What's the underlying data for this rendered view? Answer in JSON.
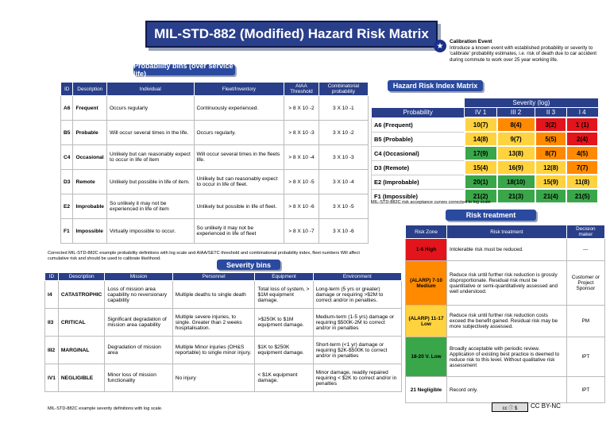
{
  "title": "MIL-STD-882 (Modified) Hazard Risk Matrix",
  "calibration": {
    "heading": "Calibration Event",
    "text": "Introduce a known event with established probability or severity to 'calibrate' probability estimates, i.e. risk of death due to car accident during commute to work over 25 year working life."
  },
  "prob_bins": {
    "heading": "Probability bins (over service life)",
    "columns": [
      "ID",
      "Description",
      "Individual",
      "Fleet/Inventory",
      "AIAA Threshold",
      "Combinatorial probability"
    ],
    "rows": [
      [
        "A6",
        "Frequent",
        "Occurs regularly",
        "Continuously experienced.",
        "> 8 X 10 -2",
        "3 X 10 -1"
      ],
      [
        "B5",
        "Probable",
        "Will occur several times in the life.",
        "Occurs regularly.",
        "> 8 X 10 -3",
        "3 X 10 -2"
      ],
      [
        "C4",
        "Occasional",
        "Unlikely but can reasonably expect to occur in life of item",
        "Will occur several times in the fleets life.",
        "> 8 X 10 -4",
        "3 X 10 -3"
      ],
      [
        "D3",
        "Remote",
        "Unlikely but possible in life of item.",
        "Unlikely but can reasonably expect to occur in life of fleet.",
        "> 8 X 10 -5",
        "3 X 10 -4"
      ],
      [
        "E2",
        "Improbable",
        "So unlikely it may not be experienced in life of item",
        "Unlikely but possible in life of fleet.",
        "> 8 X 10 -6",
        "3 X 10 -5"
      ],
      [
        "F1",
        "Impossible",
        "Virtually impossible to occur.",
        "So unlikely it may not be experienced in life of fleet",
        "> 8 X 10 -7",
        "3 X 10 -6"
      ]
    ],
    "footnote": "Corrected MIL-STD-882C example probability definitions with log scale and AIAA/SETC threshold and combinational probability index, fleet numbers Will affect cumulative risk and should be used to calibrate likelihood."
  },
  "hri": {
    "heading": "Hazard Risk Index Matrix",
    "severity_label": "Severity (log)",
    "probability_label": "Probability",
    "cols": [
      "IV 1",
      "III 2",
      "II 3",
      "I 4"
    ],
    "rows": [
      {
        "label": "A6 (Frequent)",
        "cells": [
          [
            "10(7)",
            "y"
          ],
          [
            "8(4)",
            "o"
          ],
          [
            "3(2)",
            "r"
          ],
          [
            "1 (1)",
            "r"
          ]
        ]
      },
      {
        "label": "B5 (Probable)",
        "cells": [
          [
            "14(8)",
            "y"
          ],
          [
            "9(7)",
            "y"
          ],
          [
            "5(5)",
            "o"
          ],
          [
            "2(4)",
            "r"
          ]
        ]
      },
      {
        "label": "C4 (Occasional)",
        "cells": [
          [
            "17(9)",
            "g"
          ],
          [
            "13(8)",
            "y"
          ],
          [
            "8(7)",
            "o"
          ],
          [
            "4(5)",
            "o"
          ]
        ]
      },
      {
        "label": "D3 (Remote)",
        "cells": [
          [
            "15(4)",
            "y"
          ],
          [
            "16(9)",
            "y"
          ],
          [
            "12(8)",
            "y"
          ],
          [
            "7(7)",
            "o"
          ]
        ]
      },
      {
        "label": "E2 (Improbable)",
        "cells": [
          [
            "20(1)",
            "g"
          ],
          [
            "18(10)",
            "g"
          ],
          [
            "15(9)",
            "y"
          ],
          [
            "11(8)",
            "y"
          ]
        ]
      },
      {
        "label": "F1 (Impossible)",
        "cells": [
          [
            "21(2)",
            "g"
          ],
          [
            "21(3)",
            "g"
          ],
          [
            "21(4)",
            "g"
          ],
          [
            "21(5)",
            "g"
          ]
        ]
      }
    ],
    "footnote": "MIL-STD-882C risk acceptance curves corrected to log scale"
  },
  "risk": {
    "heading": "Risk treatment",
    "columns": [
      "Risk Zone",
      "Risk treatment",
      "Decision maker"
    ],
    "rows": [
      {
        "zone": "1-6 High",
        "treat": "Intolerable risk must be reduced.",
        "dm": "---",
        "c": "r"
      },
      {
        "zone": "(ALARP) 7-10 Medium",
        "treat": "Reduce risk until further risk reduction is grossly disproportionate. Residual risk must be quantitative or semi-quantitatively assessed and well understood.",
        "dm": "Customer or Project Sponsor",
        "c": "o"
      },
      {
        "zone": "(ALARP) 11-17 Low",
        "treat": "Reduce risk until further risk reduction costs exceed the benefit gained. Residual risk may be more subjectively assessed.",
        "dm": "PM",
        "c": "y"
      },
      {
        "zone": "18-20 V. Low",
        "treat": "Broadly acceptable with periodic review. Application of existing best practice is deemed to reduce risk to this level. Without qualitative risk assessment",
        "dm": "IPT",
        "c": "g"
      },
      {
        "zone": "21 Negligible",
        "treat": "Record only.",
        "dm": "IPT",
        "c": "w"
      }
    ]
  },
  "sev": {
    "heading": "Severity bins",
    "columns": [
      "ID",
      "Description",
      "Mission",
      "Personnel",
      "Equipment",
      "Environment"
    ],
    "rows": [
      [
        "I4",
        "CATASTROPHIC",
        "Loss of mission area capability no reversionary capability",
        "Multiple deaths to single death",
        "Total loss of system, > $1M equipment damage.",
        "Long-term (5 yrs or greater) damage or requiring >$2M to correct and/or in penalties."
      ],
      [
        "II3",
        "CRITICAL",
        "Significant degradation of mission area capability",
        "Multiple severe injuries, to single. Greater than 2 weeks hospitalisation.",
        ">$250K to $1M equipment damage.",
        "Medium-term (1-5 yrs) damage or requiring $500K-2M to correct and/or in penalties"
      ],
      [
        "III2",
        "MARGINAL",
        "Degradation of mission area",
        "Multiple Minor injuries (OH&S reportable) to single minor injury.",
        "$1K to $250K equipment damage.",
        "Short-term (<1 yr) damage or requiring $2K-$500K to correct and/or in penalties"
      ],
      [
        "IV1",
        "NEGLIGIBLE",
        "Minor loss of mission functionality",
        "No injury",
        "< $1K equipment damage.",
        "Minor damage, readily repaired requiring < $2K to correct and/or in penalties"
      ]
    ],
    "footnote": "MIL-STD-882C example severity definitions with log scale."
  },
  "license": "CC BY-NC"
}
